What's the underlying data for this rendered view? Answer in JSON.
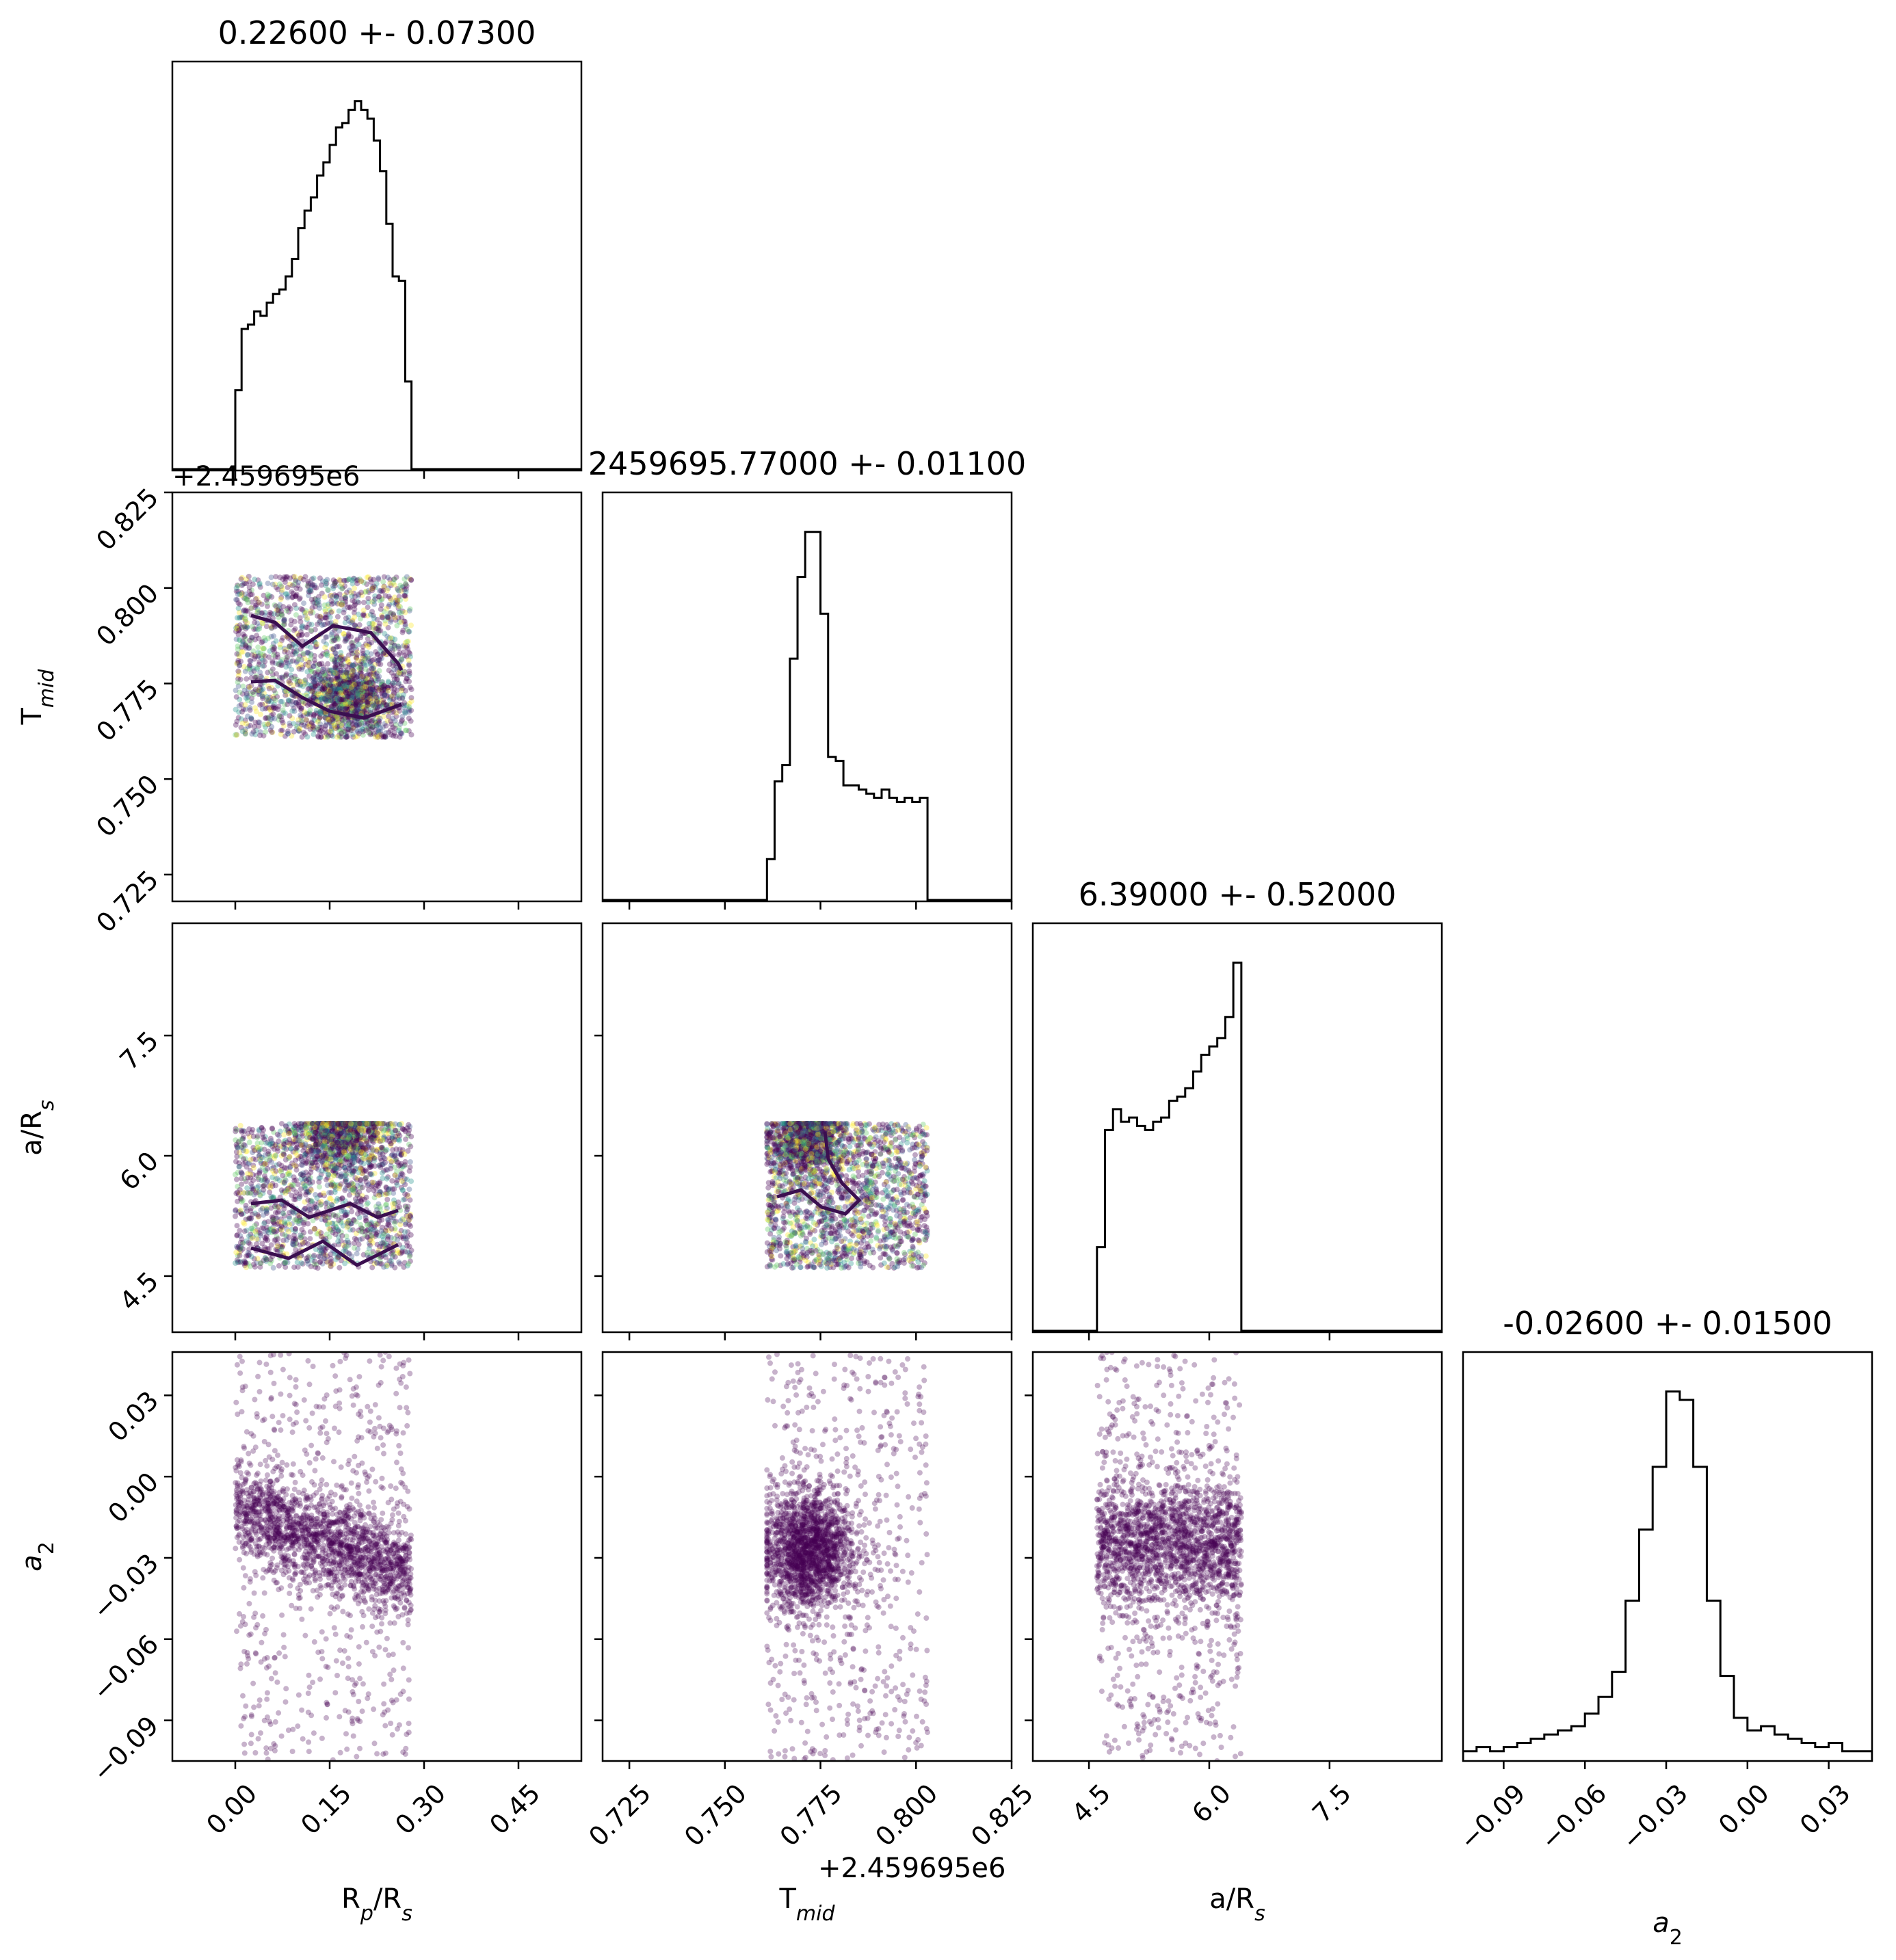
{
  "chart_data": {
    "type": "scatter",
    "kind": "corner-plot",
    "parameters": [
      "Rp/Rs",
      "Tmid",
      "a/Rs",
      "a2"
    ],
    "colors": {
      "points": "#440154",
      "histogram": "#000000",
      "contour": "#3b0f50"
    },
    "grid": false,
    "diagonal": [
      {
        "param": "Rp/Rs",
        "title": "0.22600 +- 0.07300",
        "xlim": [
          -0.1,
          0.55
        ],
        "bin_edges": [
          0.0,
          0.01,
          0.02,
          0.03,
          0.04,
          0.05,
          0.06,
          0.07,
          0.08,
          0.09,
          0.1,
          0.11,
          0.12,
          0.13,
          0.14,
          0.15,
          0.16,
          0.17,
          0.18,
          0.19,
          0.2,
          0.21,
          0.22,
          0.23,
          0.24,
          0.25,
          0.26,
          0.27,
          0.28
        ],
        "counts": [
          18,
          32,
          33,
          36,
          35,
          38,
          40,
          41,
          44,
          48,
          55,
          59,
          62,
          67,
          70,
          74,
          78,
          79,
          82,
          84,
          82,
          80,
          75,
          68,
          56,
          44,
          43,
          20
        ]
      },
      {
        "param": "Tmid",
        "title": "2459695.77000 +- 0.01100",
        "xlim": [
          0.718,
          0.825
        ],
        "bin_edges": [
          0.761,
          0.763,
          0.765,
          0.767,
          0.769,
          0.771,
          0.773,
          0.775,
          0.777,
          0.779,
          0.781,
          0.783,
          0.785,
          0.787,
          0.789,
          0.791,
          0.793,
          0.795,
          0.797,
          0.799,
          0.801,
          0.803
        ],
        "counts": [
          10,
          29,
          33,
          59,
          79,
          90,
          90,
          70,
          35,
          34,
          28,
          28,
          27,
          26,
          25,
          27,
          25,
          24,
          25,
          24,
          25
        ],
        "note_counts_relative": true
      },
      {
        "param": "a/Rs",
        "title": "6.39000 +- 0.52000",
        "xlim": [
          3.8,
          8.9
        ],
        "bin_edges": [
          4.6,
          4.7,
          4.8,
          4.9,
          5.0,
          5.1,
          5.2,
          5.3,
          5.4,
          5.5,
          5.6,
          5.7,
          5.8,
          5.9,
          6.0,
          6.1,
          6.2,
          6.3,
          6.4
        ],
        "counts": [
          20,
          48,
          53,
          50,
          51,
          49,
          48,
          50,
          51,
          55,
          56,
          58,
          62,
          66,
          68,
          70,
          75,
          88
        ]
      },
      {
        "param": "a2",
        "title": "-0.02600 +- 0.01500",
        "xlim": [
          -0.105,
          0.046
        ],
        "bin_edges": [
          -0.105,
          -0.1,
          -0.095,
          -0.09,
          -0.085,
          -0.08,
          -0.075,
          -0.07,
          -0.065,
          -0.06,
          -0.055,
          -0.05,
          -0.045,
          -0.04,
          -0.035,
          -0.03,
          -0.025,
          -0.02,
          -0.015,
          -0.01,
          -0.005,
          0.0,
          0.005,
          0.01,
          0.015,
          0.02,
          0.025,
          0.03,
          0.035,
          0.04,
          0.046
        ],
        "counts": [
          2,
          3,
          2,
          3,
          4,
          5,
          6,
          7,
          8,
          11,
          15,
          21,
          38,
          55,
          70,
          88,
          86,
          70,
          38,
          20,
          10,
          7,
          8,
          6,
          5,
          4,
          3,
          4,
          2,
          2
        ]
      }
    ],
    "axes": {
      "Rp/Rs": {
        "label": "R$_p$/R$_s$",
        "lim": [
          -0.1,
          0.55
        ],
        "ticks": [
          0.0,
          0.15,
          0.3,
          0.45
        ],
        "ticklabels": [
          "0.00",
          "0.15",
          "0.30",
          "0.45"
        ]
      },
      "Tmid": {
        "label": "T$_{mid}$",
        "lim": [
          0.718,
          0.825
        ],
        "ticks": [
          0.725,
          0.75,
          0.775,
          0.8,
          0.825
        ],
        "ticklabels": [
          "0.725",
          "0.750",
          "0.775",
          "0.800",
          "0.825"
        ],
        "offset_text": "+2.459695e6"
      },
      "a/Rs": {
        "label": "a/R$_s$",
        "lim": [
          3.8,
          8.9
        ],
        "ticks": [
          4.5,
          6.0,
          7.5
        ],
        "ticklabels": [
          "4.5",
          "6.0",
          "7.5"
        ]
      },
      "a2": {
        "label": "$a_2$",
        "lim": [
          -0.105,
          0.046
        ],
        "ticks": [
          -0.09,
          -0.06,
          -0.03,
          0.0,
          0.03
        ],
        "ticklabels": [
          "−0.09",
          "−0.06",
          "−0.03",
          "0.00",
          "0.03"
        ]
      }
    },
    "scatter_regions": {
      "Tmid_vs_Rp/Rs": {
        "x_range": [
          0.0,
          0.28
        ],
        "y_range": [
          0.761,
          0.803
        ],
        "dense_center": [
          0.18,
          0.771
        ]
      },
      "a/Rs_vs_Rp/Rs": {
        "x_range": [
          0.0,
          0.28
        ],
        "y_range": [
          4.6,
          6.4
        ],
        "dense_center": [
          0.17,
          6.3
        ]
      },
      "a/Rs_vs_Tmid": {
        "x_range": [
          0.761,
          0.803
        ],
        "y_range": [
          4.6,
          6.4
        ],
        "dense_center": [
          0.772,
          6.2
        ]
      },
      "a2_vs_Rp/Rs": {
        "x_range": [
          0.0,
          0.28
        ],
        "y_range": [
          -0.105,
          0.046
        ],
        "dense_center": [
          0.16,
          -0.025
        ]
      },
      "a2_vs_Tmid": {
        "x_range": [
          0.761,
          0.803
        ],
        "y_range": [
          -0.105,
          0.046
        ],
        "dense_center": [
          0.772,
          -0.027
        ]
      },
      "a2_vs_a/Rs": {
        "x_range": [
          4.6,
          6.4
        ],
        "y_range": [
          -0.105,
          0.046
        ],
        "dense_center": [
          5.9,
          -0.025
        ]
      }
    }
  },
  "labels": {
    "x": [
      "R$_p$/R$_s$",
      "T$_{mid}$",
      "a/R$_s$",
      "$a_2$"
    ],
    "y": [
      "T$_{mid}$",
      "a/R$_s$",
      "$a_2$"
    ],
    "offset_y_top": "+2.459695e6",
    "offset_x_tmid": "+2.459695e6"
  }
}
